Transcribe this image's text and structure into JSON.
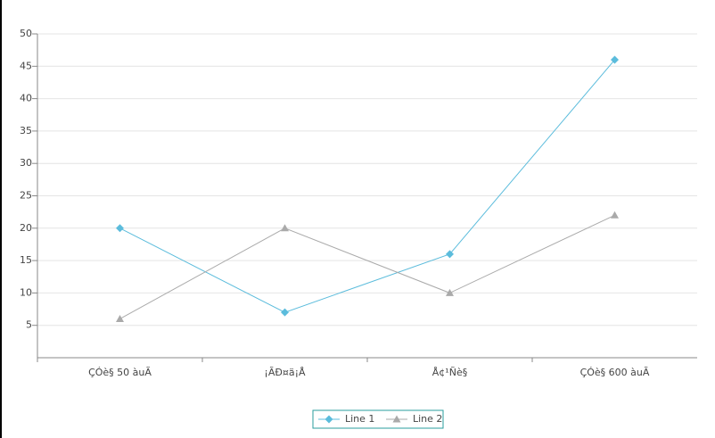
{
  "chart_data": {
    "type": "line",
    "categories": [
      "ÇÓè§ 50 àuÃ",
      "¡ÃÐ¤ä¡Å",
      "Å¢¹Ñè§",
      "ÇÓè§ 600 àuÃ"
    ],
    "series": [
      {
        "name": "Line 1",
        "color": "#5bbcdc",
        "marker": "diamond",
        "values": [
          20,
          7,
          16,
          46
        ]
      },
      {
        "name": "Line 2",
        "color": "#aaaaaa",
        "marker": "triangle",
        "values": [
          6,
          20,
          10,
          22
        ]
      }
    ],
    "ylim": [
      0,
      50
    ],
    "yticks": [
      5,
      10,
      15,
      20,
      25,
      30,
      35,
      40,
      45,
      50
    ],
    "grid": true,
    "legend": "bottom"
  }
}
